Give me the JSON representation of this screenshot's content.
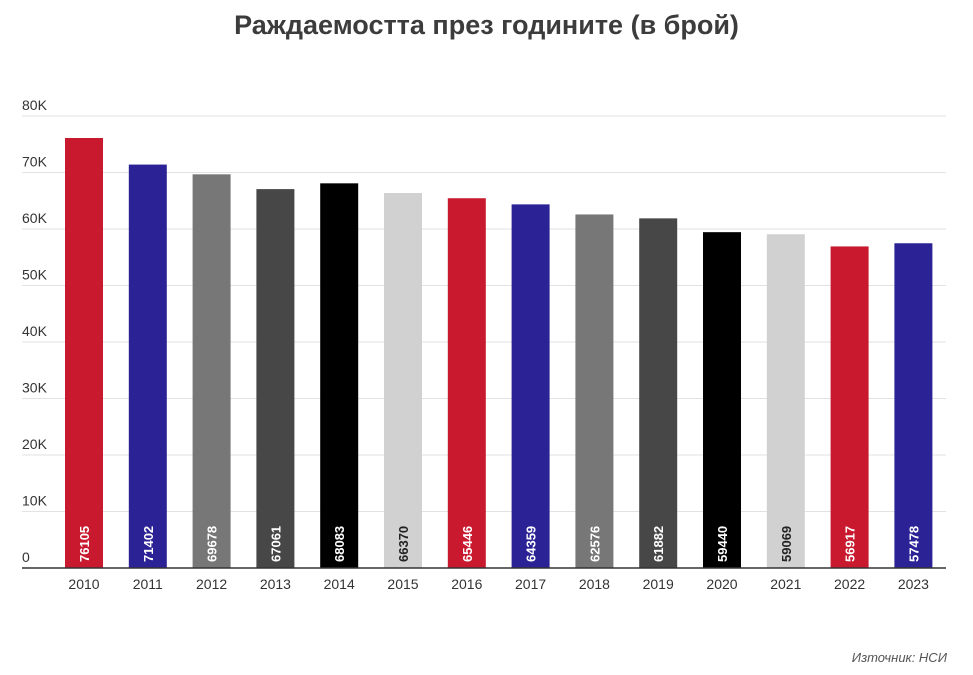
{
  "chart_data": {
    "type": "bar",
    "title": "Раждаемостта през годините (в брой)",
    "source": "Източник: НСИ",
    "categories": [
      "2010",
      "2011",
      "2012",
      "2013",
      "2014",
      "2015",
      "2016",
      "2017",
      "2018",
      "2019",
      "2020",
      "2021",
      "2022",
      "2023"
    ],
    "values": [
      76105,
      71402,
      69678,
      67061,
      68083,
      66370,
      65446,
      64359,
      62576,
      61882,
      59440,
      59069,
      56917,
      57478
    ],
    "colors": [
      "#c8192e",
      "#2b2395",
      "#777777",
      "#474747",
      "#000000",
      "#d1d1d1",
      "#c8192e",
      "#2b2395",
      "#777777",
      "#474747",
      "#000000",
      "#d1d1d1",
      "#c8192e",
      "#2b2395"
    ],
    "label_colors": [
      "#ffffff",
      "#ffffff",
      "#ffffff",
      "#ffffff",
      "#ffffff",
      "#222222",
      "#ffffff",
      "#ffffff",
      "#ffffff",
      "#ffffff",
      "#ffffff",
      "#222222",
      "#ffffff",
      "#ffffff"
    ],
    "y_ticks": [
      0,
      10000,
      20000,
      30000,
      40000,
      50000,
      60000,
      70000,
      80000
    ],
    "y_tick_labels": [
      "0",
      "10K",
      "20K",
      "30K",
      "40K",
      "50K",
      "60K",
      "70K",
      "80K"
    ],
    "ylim": [
      0,
      80000
    ],
    "grid": true,
    "xlabel": "",
    "ylabel": ""
  }
}
